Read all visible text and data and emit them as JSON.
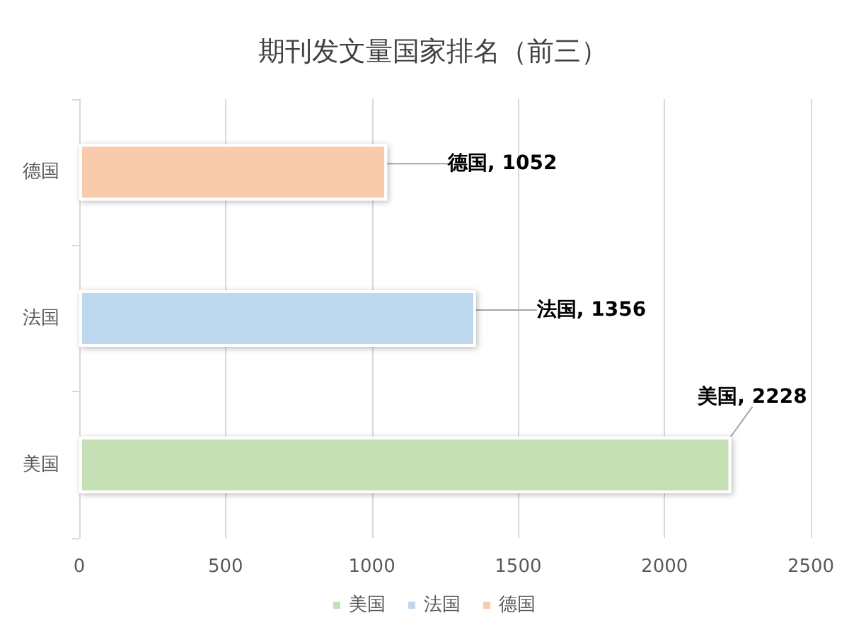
{
  "chart_data": {
    "type": "bar",
    "orientation": "horizontal",
    "title": "期刊发文量国家排名（前三）",
    "categories": [
      "德国",
      "法国",
      "美国"
    ],
    "series": [
      {
        "name": "美国",
        "color": "#c5e0b4",
        "values": [
          null,
          null,
          2228
        ],
        "value_labels": [
          null,
          null,
          "美国, 2228"
        ]
      },
      {
        "name": "法国",
        "color": "#bdd7ee",
        "values": [
          null,
          1356,
          null
        ],
        "value_labels": [
          null,
          "法国, 1356",
          null
        ]
      },
      {
        "name": "德国",
        "color": "#f8cbad",
        "values": [
          1052,
          null,
          null
        ],
        "value_labels": [
          "德国, 1052",
          null,
          null
        ]
      }
    ],
    "xlim": [
      0,
      2500
    ],
    "xticks": [
      0,
      500,
      1000,
      1500,
      2000,
      2500
    ],
    "grid": "x",
    "legend": "bottom"
  }
}
